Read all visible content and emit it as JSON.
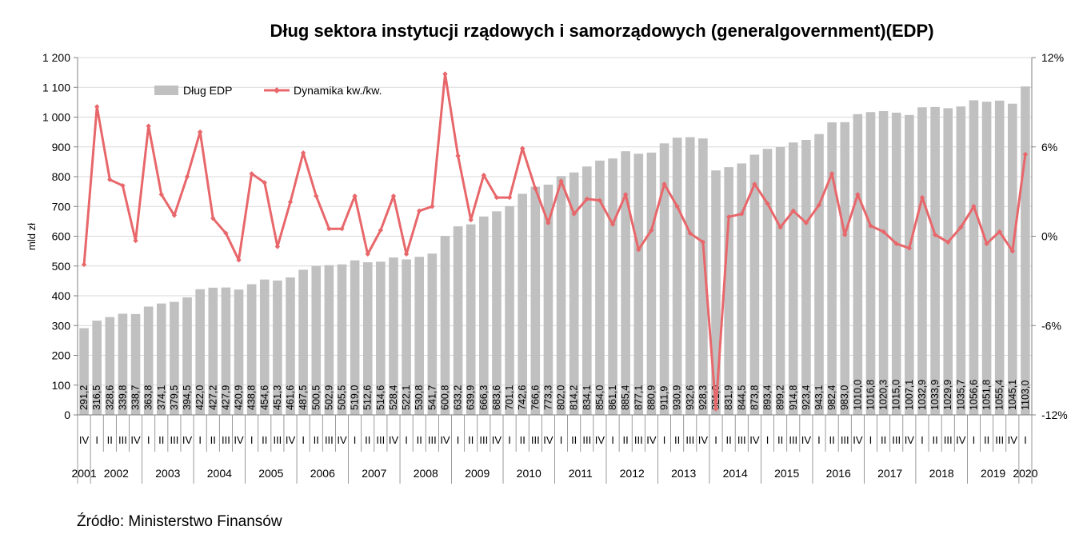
{
  "chart_data": {
    "type": "bar",
    "title": "Dług sektora instytucji rządowych i samorządowych (generalgovernment)(EDP)",
    "ylabel": "mld zł",
    "ylim": [
      0,
      1200
    ],
    "y_ticks": [
      "0",
      "100",
      "200",
      "300",
      "400",
      "500",
      "600",
      "700",
      "800",
      "900",
      "1 000",
      "1 100",
      "1 200"
    ],
    "y2lim": [
      -12,
      12
    ],
    "y2_ticks": [
      "-12%",
      "-6%",
      "0%",
      "6%",
      "12%"
    ],
    "legend_position": "top-left",
    "grid": "horizontal",
    "quarters": [
      "IV",
      "I",
      "II",
      "III",
      "IV",
      "I",
      "II",
      "III",
      "IV",
      "I",
      "II",
      "III",
      "IV",
      "I",
      "II",
      "III",
      "IV",
      "I",
      "II",
      "III",
      "IV",
      "I",
      "II",
      "III",
      "IV",
      "I",
      "II",
      "III",
      "IV",
      "I",
      "II",
      "III",
      "IV",
      "I",
      "II",
      "III",
      "IV",
      "I",
      "II",
      "III",
      "IV",
      "I",
      "II",
      "III",
      "IV",
      "I",
      "II",
      "III",
      "IV",
      "I",
      "II",
      "III",
      "IV",
      "I",
      "II",
      "III",
      "IV",
      "I",
      "II",
      "III",
      "IV",
      "I",
      "II",
      "III",
      "IV",
      "I",
      "II",
      "III",
      "IV",
      "I",
      "II",
      "III",
      "IV",
      "I"
    ],
    "years": [
      {
        "label": "2001",
        "start": 0,
        "count": 1
      },
      {
        "label": "2002",
        "start": 1,
        "count": 4
      },
      {
        "label": "2003",
        "start": 5,
        "count": 4
      },
      {
        "label": "2004",
        "start": 9,
        "count": 4
      },
      {
        "label": "2005",
        "start": 13,
        "count": 4
      },
      {
        "label": "2006",
        "start": 17,
        "count": 4
      },
      {
        "label": "2007",
        "start": 21,
        "count": 4
      },
      {
        "label": "2008",
        "start": 25,
        "count": 4
      },
      {
        "label": "2009",
        "start": 29,
        "count": 4
      },
      {
        "label": "2010",
        "start": 33,
        "count": 4
      },
      {
        "label": "2011",
        "start": 37,
        "count": 4
      },
      {
        "label": "2012",
        "start": 41,
        "count": 4
      },
      {
        "label": "2013",
        "start": 45,
        "count": 4
      },
      {
        "label": "2014",
        "start": 49,
        "count": 4
      },
      {
        "label": "2015",
        "start": 53,
        "count": 4
      },
      {
        "label": "2016",
        "start": 57,
        "count": 4
      },
      {
        "label": "2017",
        "start": 61,
        "count": 4
      },
      {
        "label": "2018",
        "start": 65,
        "count": 4
      },
      {
        "label": "2019",
        "start": 69,
        "count": 4
      },
      {
        "label": "2020",
        "start": 73,
        "count": 1
      }
    ],
    "series": [
      {
        "name": "Dług EDP",
        "type": "bar",
        "color": "#c0c0c0",
        "values": [
          291.2,
          316.5,
          328.6,
          339.8,
          338.7,
          363.8,
          374.1,
          379.5,
          394.5,
          422.0,
          427.2,
          427.9,
          420.9,
          438.8,
          454.6,
          451.3,
          461.6,
          487.5,
          500.5,
          502.9,
          505.5,
          519.0,
          512.6,
          514.6,
          528.4,
          522.1,
          530.8,
          541.7,
          600.8,
          633.2,
          639.9,
          666.3,
          683.6,
          701.1,
          742.6,
          766.6,
          773.3,
          802.0,
          814.2,
          834.1,
          854.0,
          861.1,
          885.4,
          877.1,
          880.9,
          911.9,
          930.9,
          932.6,
          928.3,
          821.0,
          831.9,
          844.5,
          873.8,
          893.4,
          899.2,
          914.8,
          923.4,
          943.1,
          982.4,
          983.0,
          1010.0,
          1016.8,
          1020.3,
          1015.0,
          1007.1,
          1032.9,
          1033.9,
          1029.9,
          1035.7,
          1056.6,
          1051.8,
          1055.4,
          1045.1,
          1103.0
        ],
        "labels": [
          "291,2",
          "316,5",
          "328,6",
          "339,8",
          "338,7",
          "363,8",
          "374,1",
          "379,5",
          "394,5",
          "422,0",
          "427,2",
          "427,9",
          "420,9",
          "438,8",
          "454,6",
          "451,3",
          "461,6",
          "487,5",
          "500,5",
          "502,9",
          "505,5",
          "519,0",
          "512,6",
          "514,6",
          "528,4",
          "522,1",
          "530,8",
          "541,7",
          "600,8",
          "633,2",
          "639,9",
          "666,3",
          "683,6",
          "701,1",
          "742,6",
          "766,6",
          "773,3",
          "802,0",
          "814,2",
          "834,1",
          "854,0",
          "861,1",
          "885,4",
          "877,1",
          "880,9",
          "911,9",
          "930,9",
          "932,6",
          "928,3",
          "821,0",
          "831,9",
          "844,5",
          "873,8",
          "893,4",
          "899,2",
          "914,8",
          "923,4",
          "943,1",
          "982,4",
          "983,0",
          "1010,0",
          "1016,8",
          "1020,3",
          "1015,0",
          "1007,1",
          "1032,9",
          "1033,9",
          "1029,9",
          "1035,7",
          "1056,6",
          "1051,8",
          "1055,4",
          "1045,1",
          "1103,0"
        ]
      },
      {
        "name": "Dynamika kw./kw.",
        "type": "line",
        "axis": "right",
        "color": "#e8676b",
        "values": [
          -1.9,
          8.7,
          3.8,
          3.4,
          -0.3,
          7.4,
          2.8,
          1.4,
          4.0,
          7.0,
          1.2,
          0.2,
          -1.6,
          4.2,
          3.6,
          -0.7,
          2.3,
          5.6,
          2.7,
          0.5,
          0.5,
          2.7,
          -1.2,
          0.4,
          2.7,
          -1.2,
          1.7,
          2.0,
          10.9,
          5.4,
          1.1,
          4.1,
          2.6,
          2.6,
          5.9,
          3.2,
          0.9,
          3.7,
          1.5,
          2.5,
          2.4,
          0.8,
          2.8,
          -0.9,
          0.4,
          3.5,
          2.0,
          0.2,
          -0.4,
          -11.6,
          1.3,
          1.5,
          3.5,
          2.2,
          0.6,
          1.7,
          0.9,
          2.1,
          4.2,
          0.1,
          2.8,
          0.7,
          0.3,
          -0.5,
          -0.8,
          2.6,
          0.1,
          -0.4,
          0.6,
          2.0,
          -0.5,
          0.3,
          -1.0,
          5.5
        ]
      }
    ]
  },
  "source": "Źródło: Ministerstwo Finansów"
}
